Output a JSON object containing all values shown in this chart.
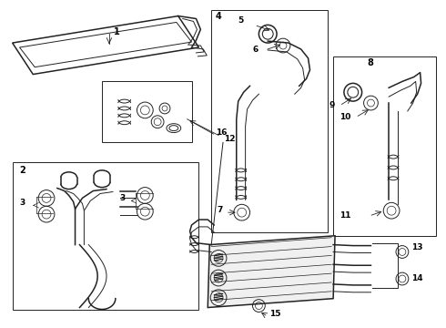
{
  "bg_color": "#ffffff",
  "line_color": "#222222",
  "label_color": "#000000",
  "figsize": [
    4.9,
    3.6
  ],
  "dpi": 100
}
